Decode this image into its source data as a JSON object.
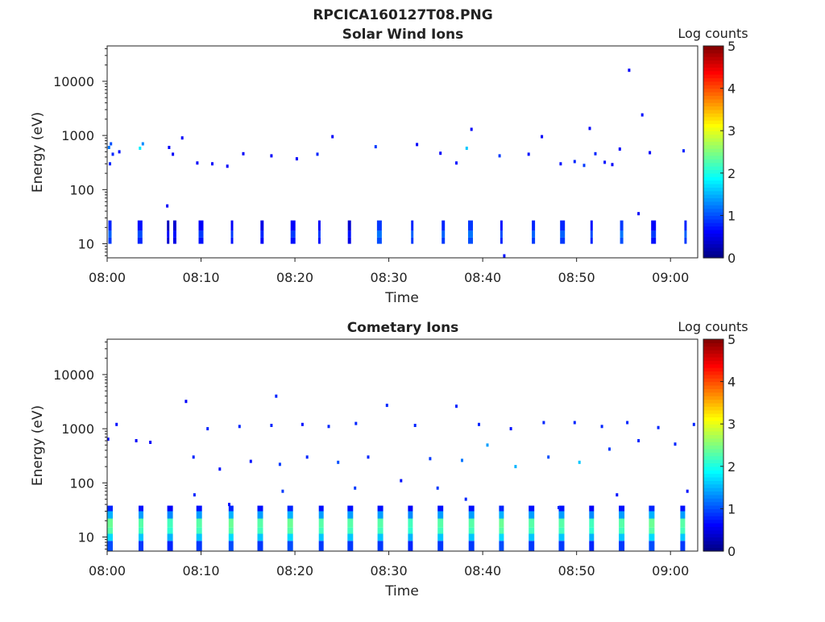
{
  "figure": {
    "suptitle": "RPCICA160127T08.PNG"
  },
  "chart_data": [
    {
      "type": "heatmap",
      "title": "Solar Wind Ions",
      "xlabel": "Time",
      "ylabel": "Energy (eV)",
      "x_ticks": [
        "08:00",
        "08:10",
        "08:20",
        "08:30",
        "08:40",
        "08:50",
        "09:00"
      ],
      "x_range_minutes": [
        0,
        62.9
      ],
      "y_scale": "log",
      "y_ticks": [
        "10",
        "100",
        "1000",
        "10000"
      ],
      "y_range": [
        5.5,
        45000
      ],
      "colorbar": {
        "label": "Log counts",
        "range": [
          0,
          5
        ],
        "ticks": [
          "0",
          "1",
          "2",
          "3",
          "4",
          "5"
        ],
        "colormap": "jet"
      },
      "events": [
        {
          "t": 0.3,
          "level": 0.9
        },
        {
          "t": 3.5,
          "level": 0.8
        },
        {
          "t": 6.5,
          "level": 0.4
        },
        {
          "t": 7.2,
          "level": 0.5
        },
        {
          "t": 10.0,
          "level": 0.7
        },
        {
          "t": 13.3,
          "level": 0.7
        },
        {
          "t": 16.5,
          "level": 0.6
        },
        {
          "t": 19.8,
          "level": 0.7
        },
        {
          "t": 22.6,
          "level": 0.7
        },
        {
          "t": 25.8,
          "level": 0.5
        },
        {
          "t": 29.0,
          "level": 1.0
        },
        {
          "t": 32.5,
          "level": 0.9
        },
        {
          "t": 35.8,
          "level": 0.9
        },
        {
          "t": 38.7,
          "level": 1.0
        },
        {
          "t": 42.0,
          "level": 0.8
        },
        {
          "t": 45.4,
          "level": 0.9
        },
        {
          "t": 48.5,
          "level": 0.9
        },
        {
          "t": 51.6,
          "level": 0.8
        },
        {
          "t": 54.8,
          "level": 1.0
        },
        {
          "t": 58.2,
          "level": 0.7
        },
        {
          "t": 61.6,
          "level": 0.9
        }
      ],
      "scatter": [
        {
          "t": 0.2,
          "e": 600,
          "level": 1.2
        },
        {
          "t": 0.4,
          "e": 700,
          "level": 1.0
        },
        {
          "t": 0.6,
          "e": 450,
          "level": 0.8
        },
        {
          "t": 0.3,
          "e": 300,
          "level": 0.8
        },
        {
          "t": 1.3,
          "e": 500,
          "level": 0.7
        },
        {
          "t": 3.5,
          "e": 580,
          "level": 1.8
        },
        {
          "t": 3.8,
          "e": 700,
          "level": 1.3
        },
        {
          "t": 6.6,
          "e": 600,
          "level": 0.6
        },
        {
          "t": 7.0,
          "e": 450,
          "level": 0.6
        },
        {
          "t": 8.0,
          "e": 900,
          "level": 0.6
        },
        {
          "t": 9.6,
          "e": 310,
          "level": 0.6
        },
        {
          "t": 11.2,
          "e": 300,
          "level": 0.6
        },
        {
          "t": 12.8,
          "e": 270,
          "level": 0.6
        },
        {
          "t": 14.5,
          "e": 460,
          "level": 0.6
        },
        {
          "t": 17.5,
          "e": 420,
          "level": 0.6
        },
        {
          "t": 20.2,
          "e": 370,
          "level": 0.6
        },
        {
          "t": 22.4,
          "e": 450,
          "level": 0.8
        },
        {
          "t": 24.0,
          "e": 950,
          "level": 0.6
        },
        {
          "t": 28.6,
          "e": 620,
          "level": 0.9
        },
        {
          "t": 33.0,
          "e": 680,
          "level": 0.6
        },
        {
          "t": 35.5,
          "e": 470,
          "level": 0.6
        },
        {
          "t": 37.2,
          "e": 310,
          "level": 0.7
        },
        {
          "t": 38.3,
          "e": 580,
          "level": 1.6
        },
        {
          "t": 38.8,
          "e": 1300,
          "level": 0.6
        },
        {
          "t": 41.8,
          "e": 420,
          "level": 0.9
        },
        {
          "t": 44.9,
          "e": 450,
          "level": 0.7
        },
        {
          "t": 46.3,
          "e": 950,
          "level": 0.6
        },
        {
          "t": 48.3,
          "e": 300,
          "level": 0.7
        },
        {
          "t": 49.8,
          "e": 330,
          "level": 0.8
        },
        {
          "t": 50.8,
          "e": 280,
          "level": 0.9
        },
        {
          "t": 51.4,
          "e": 1350,
          "level": 0.6
        },
        {
          "t": 52.0,
          "e": 460,
          "level": 0.8
        },
        {
          "t": 53.0,
          "e": 320,
          "level": 0.7
        },
        {
          "t": 53.8,
          "e": 290,
          "level": 0.6
        },
        {
          "t": 54.6,
          "e": 560,
          "level": 0.6
        },
        {
          "t": 55.6,
          "e": 16000,
          "level": 0.6
        },
        {
          "t": 56.6,
          "e": 36,
          "level": 0.6
        },
        {
          "t": 57.0,
          "e": 2400,
          "level": 0.7
        },
        {
          "t": 57.8,
          "e": 480,
          "level": 0.6
        },
        {
          "t": 61.4,
          "e": 520,
          "level": 0.8
        },
        {
          "t": 6.4,
          "e": 50,
          "level": 0.6
        },
        {
          "t": 42.3,
          "e": 6,
          "level": 0.7
        }
      ]
    },
    {
      "type": "heatmap",
      "title": "Cometary Ions",
      "xlabel": "Time",
      "ylabel": "Energy (eV)",
      "x_ticks": [
        "08:00",
        "08:10",
        "08:20",
        "08:30",
        "08:40",
        "08:50",
        "09:00"
      ],
      "x_range_minutes": [
        0,
        62.9
      ],
      "y_scale": "log",
      "y_ticks": [
        "10",
        "100",
        "1000",
        "10000"
      ],
      "y_range": [
        5.5,
        45000
      ],
      "colorbar": {
        "label": "Log counts",
        "range": [
          0,
          5
        ],
        "ticks": [
          "0",
          "1",
          "2",
          "3",
          "4",
          "5"
        ],
        "colormap": "jet"
      },
      "events": [
        {
          "t": 0.3,
          "level": 2.3
        },
        {
          "t": 3.6,
          "level": 2.2
        },
        {
          "t": 6.7,
          "level": 2.1
        },
        {
          "t": 9.8,
          "level": 2.2
        },
        {
          "t": 13.2,
          "level": 2.3
        },
        {
          "t": 16.3,
          "level": 2.2
        },
        {
          "t": 19.5,
          "level": 2.3
        },
        {
          "t": 22.8,
          "level": 2.2
        },
        {
          "t": 25.9,
          "level": 2.2
        },
        {
          "t": 29.1,
          "level": 2.2
        },
        {
          "t": 32.3,
          "level": 2.1
        },
        {
          "t": 35.5,
          "level": 2.2
        },
        {
          "t": 38.8,
          "level": 2.2
        },
        {
          "t": 42.0,
          "level": 2.3
        },
        {
          "t": 45.2,
          "level": 2.2
        },
        {
          "t": 48.4,
          "level": 2.2
        },
        {
          "t": 51.6,
          "level": 2.1
        },
        {
          "t": 54.8,
          "level": 2.2
        },
        {
          "t": 58.0,
          "level": 2.3
        },
        {
          "t": 61.3,
          "level": 2.2
        }
      ],
      "scatter": [
        {
          "t": 0.1,
          "e": 640,
          "level": 0.7
        },
        {
          "t": 1.0,
          "e": 1200,
          "level": 0.7
        },
        {
          "t": 3.1,
          "e": 600,
          "level": 0.6
        },
        {
          "t": 4.6,
          "e": 560,
          "level": 0.6
        },
        {
          "t": 8.4,
          "e": 3200,
          "level": 0.6
        },
        {
          "t": 10.7,
          "e": 1000,
          "level": 0.8
        },
        {
          "t": 14.1,
          "e": 1100,
          "level": 0.8
        },
        {
          "t": 17.5,
          "e": 1150,
          "level": 0.8
        },
        {
          "t": 18.0,
          "e": 4000,
          "level": 0.8
        },
        {
          "t": 20.8,
          "e": 1200,
          "level": 0.7
        },
        {
          "t": 23.6,
          "e": 1100,
          "level": 0.8
        },
        {
          "t": 26.5,
          "e": 1250,
          "level": 0.8
        },
        {
          "t": 29.8,
          "e": 2700,
          "level": 0.8
        },
        {
          "t": 32.8,
          "e": 1150,
          "level": 0.8
        },
        {
          "t": 37.2,
          "e": 2600,
          "level": 0.8
        },
        {
          "t": 39.6,
          "e": 1200,
          "level": 0.8
        },
        {
          "t": 43.0,
          "e": 1000,
          "level": 0.7
        },
        {
          "t": 46.5,
          "e": 1300,
          "level": 0.8
        },
        {
          "t": 49.8,
          "e": 1300,
          "level": 0.8
        },
        {
          "t": 52.7,
          "e": 1100,
          "level": 0.8
        },
        {
          "t": 55.4,
          "e": 1300,
          "level": 0.8
        },
        {
          "t": 58.7,
          "e": 1050,
          "level": 0.8
        },
        {
          "t": 62.5,
          "e": 1200,
          "level": 0.8
        },
        {
          "t": 9.2,
          "e": 300,
          "level": 0.8
        },
        {
          "t": 12.0,
          "e": 180,
          "level": 0.7
        },
        {
          "t": 15.3,
          "e": 250,
          "level": 0.7
        },
        {
          "t": 18.4,
          "e": 220,
          "level": 0.9
        },
        {
          "t": 21.3,
          "e": 300,
          "level": 0.8
        },
        {
          "t": 24.6,
          "e": 240,
          "level": 1.0
        },
        {
          "t": 27.8,
          "e": 300,
          "level": 0.8
        },
        {
          "t": 31.3,
          "e": 110,
          "level": 0.7
        },
        {
          "t": 34.4,
          "e": 280,
          "level": 0.9
        },
        {
          "t": 37.8,
          "e": 260,
          "level": 1.2
        },
        {
          "t": 40.5,
          "e": 500,
          "level": 1.4
        },
        {
          "t": 43.5,
          "e": 200,
          "level": 1.5
        },
        {
          "t": 47.0,
          "e": 300,
          "level": 1.0
        },
        {
          "t": 50.3,
          "e": 240,
          "level": 1.6
        },
        {
          "t": 53.5,
          "e": 420,
          "level": 0.9
        },
        {
          "t": 56.6,
          "e": 600,
          "level": 0.8
        },
        {
          "t": 60.5,
          "e": 520,
          "level": 0.8
        },
        {
          "t": 9.3,
          "e": 60,
          "level": 0.8
        },
        {
          "t": 18.7,
          "e": 70,
          "level": 0.9
        },
        {
          "t": 26.4,
          "e": 80,
          "level": 0.9
        },
        {
          "t": 35.2,
          "e": 80,
          "level": 0.9
        },
        {
          "t": 38.2,
          "e": 50,
          "level": 0.8
        },
        {
          "t": 54.3,
          "e": 60,
          "level": 0.7
        },
        {
          "t": 61.8,
          "e": 70,
          "level": 0.7
        },
        {
          "t": 13.0,
          "e": 40,
          "level": 0.7
        },
        {
          "t": 48.1,
          "e": 35,
          "level": 0.8
        }
      ]
    }
  ]
}
